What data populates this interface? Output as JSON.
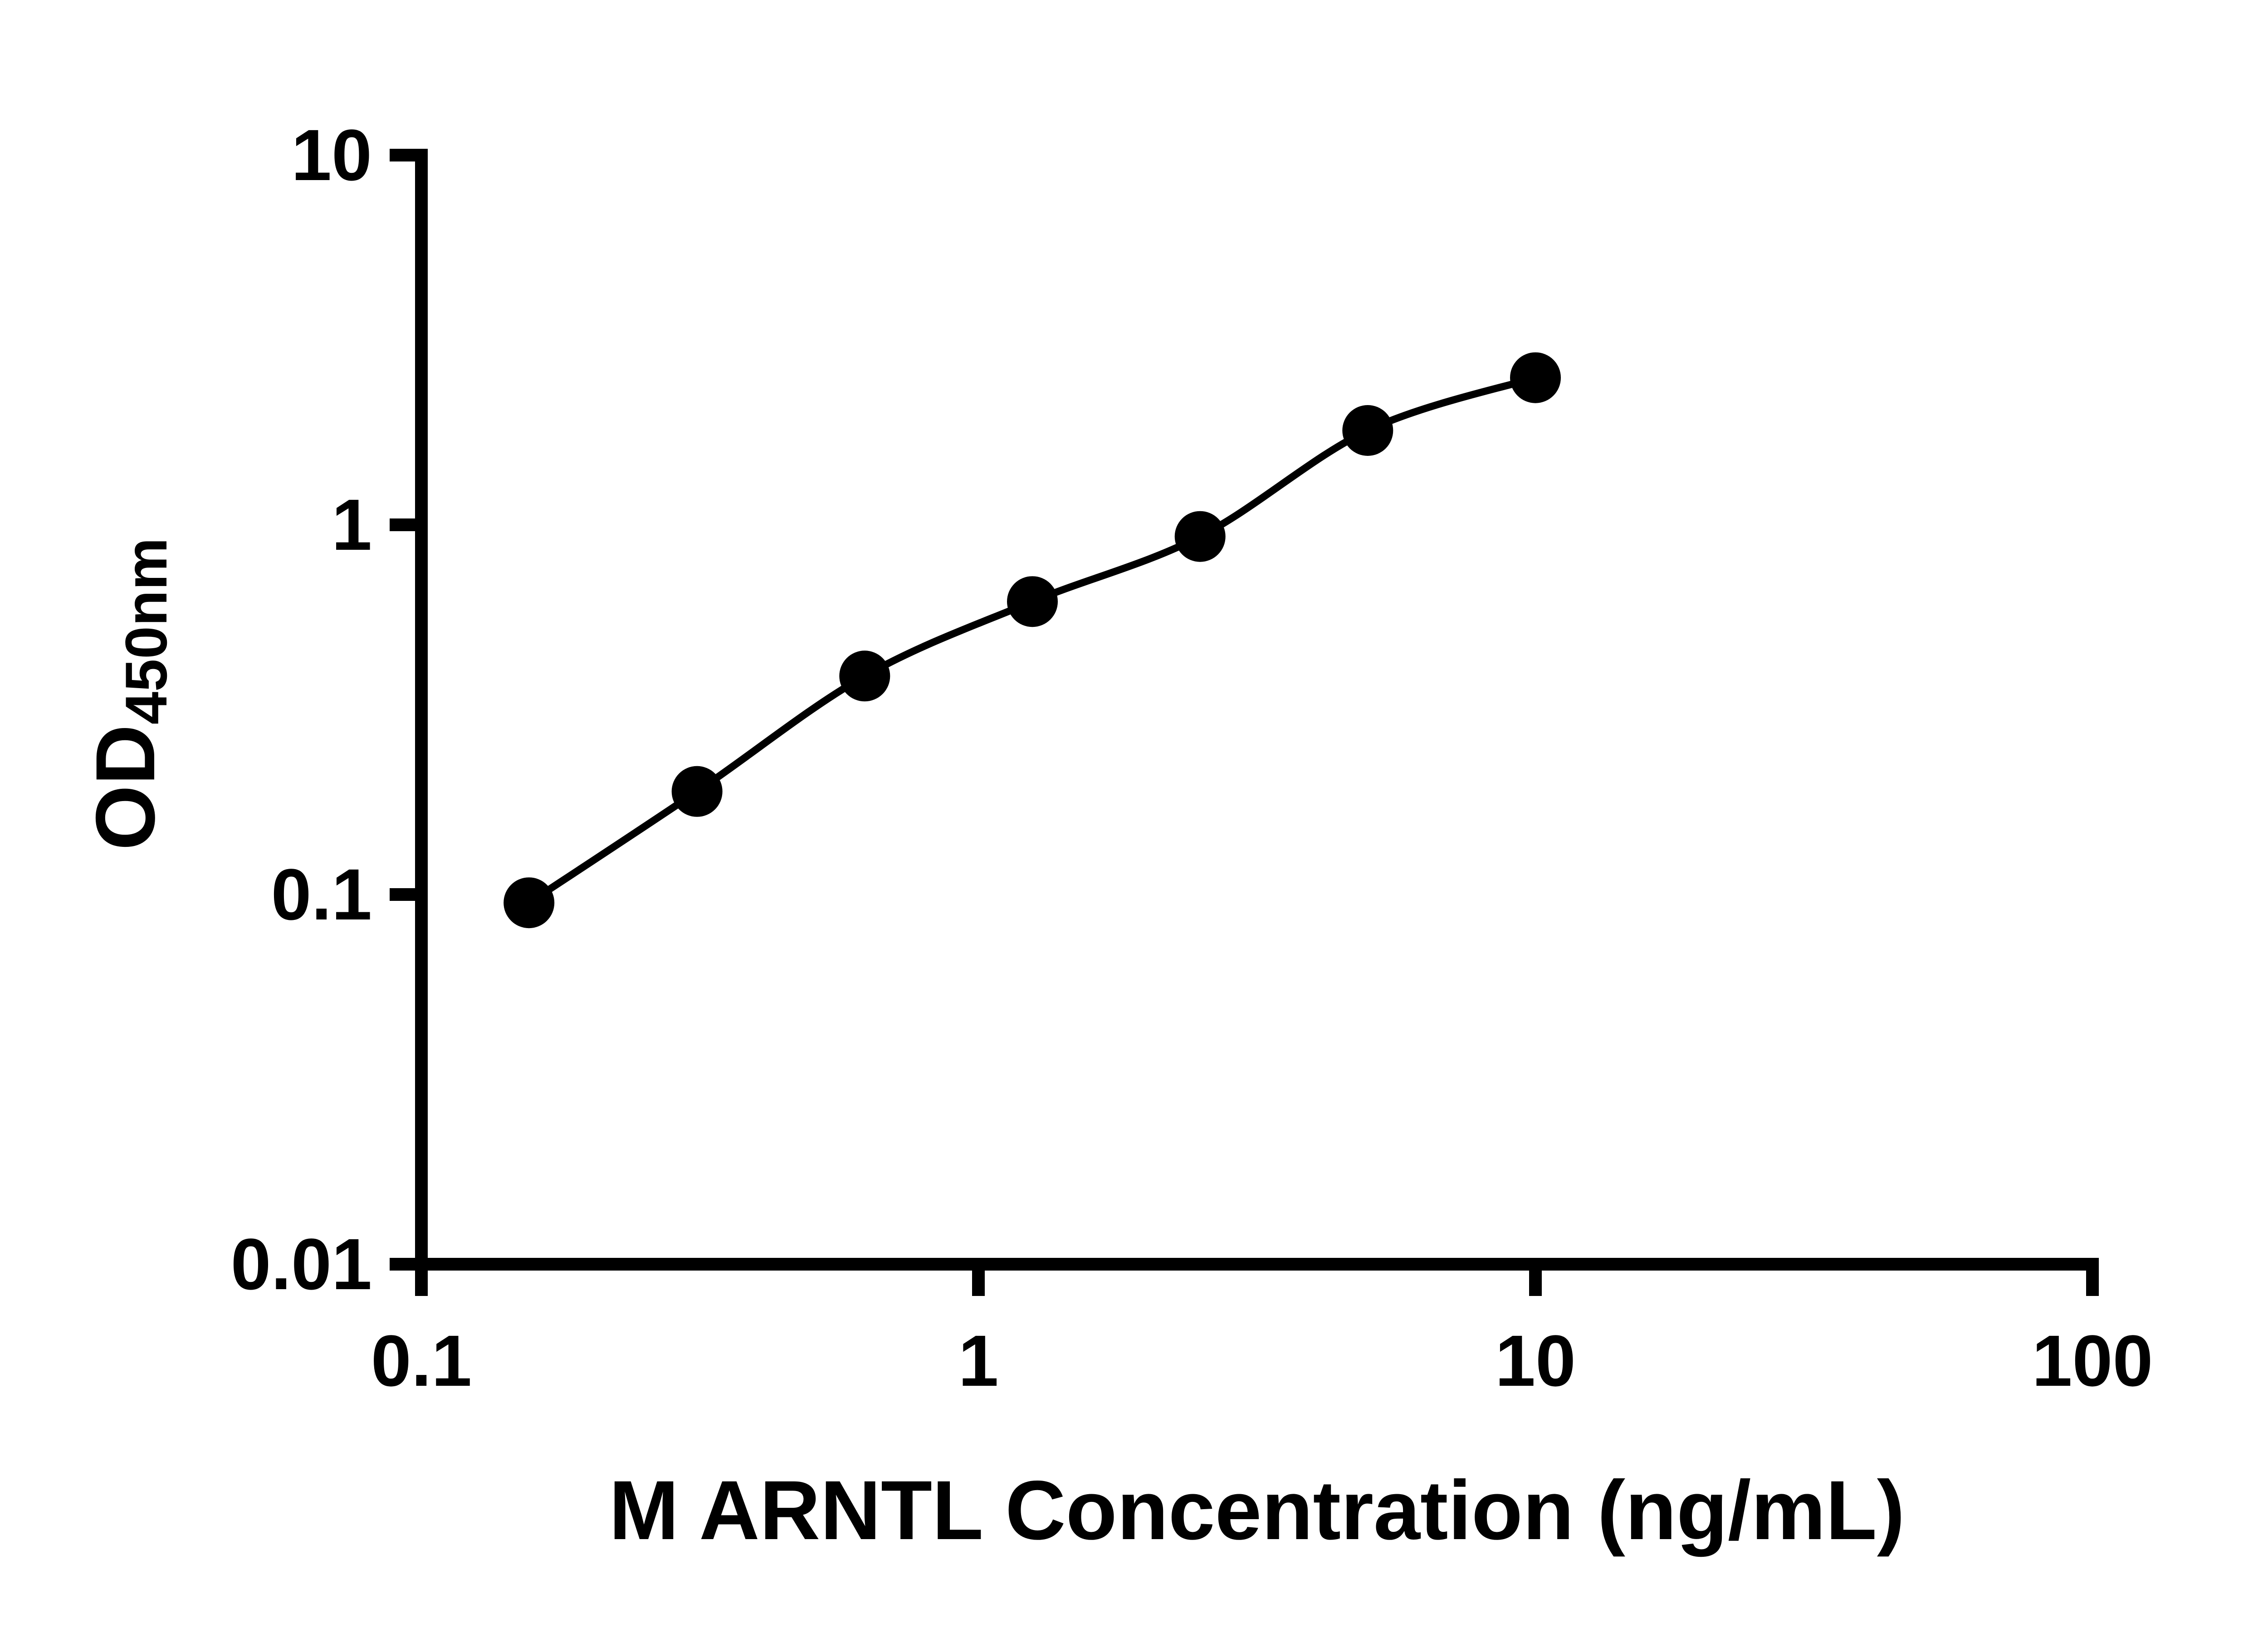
{
  "chart_data": {
    "type": "scatter",
    "title": "",
    "xlabel": "M ARNTL Concentration (ng/mL)",
    "ylabel_main": "OD",
    "ylabel_sub": "450nm",
    "x_scale": "log",
    "y_scale": "log",
    "xlim": [
      0.1,
      100
    ],
    "ylim": [
      0.01,
      10
    ],
    "x_ticks": [
      0.1,
      1,
      10,
      100
    ],
    "x_tick_labels": [
      "0.1",
      "1",
      "10",
      "100"
    ],
    "y_ticks": [
      0.01,
      0.1,
      1,
      10
    ],
    "y_tick_labels": [
      "10",
      "1",
      "0.1",
      "0.01"
    ],
    "grid": false,
    "legend": "none",
    "series": [
      {
        "marker": "filled-circle",
        "line": "smooth",
        "x": [
          0.156,
          0.3125,
          0.625,
          1.25,
          2.5,
          5,
          10
        ],
        "y": [
          0.095,
          0.19,
          0.39,
          0.62,
          0.93,
          1.8,
          2.5
        ]
      }
    ]
  },
  "style": {
    "axis_color": "#000000",
    "line_color": "#000000",
    "marker_color": "#000000",
    "background": "#ffffff"
  }
}
